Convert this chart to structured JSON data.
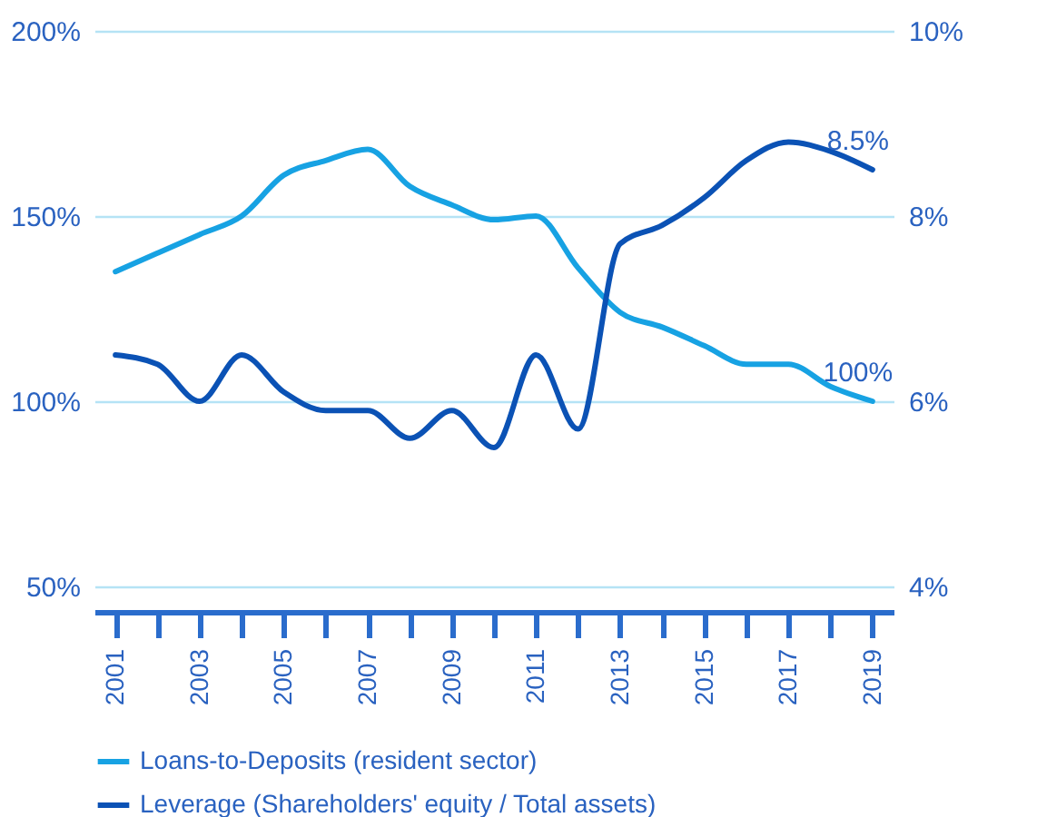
{
  "chart_data": {
    "type": "line",
    "categories": [
      "2001",
      null,
      "2003",
      null,
      "2005",
      null,
      "2007",
      null,
      "2009",
      null,
      "2011",
      null,
      "2013",
      null,
      "2015",
      null,
      "2017",
      null,
      "2019"
    ],
    "series": [
      {
        "name": "Loans-to-Deposits (resident sector)",
        "color": "#17a2e3",
        "values": [
          135,
          140,
          145,
          150,
          161,
          165,
          168,
          158,
          153,
          149,
          150,
          136,
          124,
          120,
          115,
          110,
          110,
          104,
          100
        ],
        "value_labels": [
          null,
          null,
          null,
          null,
          null,
          null,
          null,
          null,
          null,
          null,
          null,
          null,
          null,
          null,
          null,
          null,
          null,
          null,
          "100%"
        ]
      },
      {
        "name": "Leverage (Shareholders' equity / Total assets)",
        "color": "#0b52b5",
        "axis": "y2",
        "values": [
          6.5,
          6.4,
          6.0,
          6.5,
          6.1,
          5.9,
          5.9,
          5.6,
          5.9,
          5.5,
          6.5,
          5.7,
          7.7,
          7.9,
          8.2,
          8.6,
          8.8,
          8.7,
          8.5
        ],
        "value_labels": [
          null,
          null,
          null,
          null,
          null,
          null,
          null,
          null,
          null,
          null,
          null,
          null,
          null,
          null,
          null,
          null,
          null,
          null,
          "8.5%"
        ]
      }
    ],
    "ylim": [
      50,
      200
    ],
    "yticks": [
      {
        "value": 50,
        "label": "50%"
      },
      {
        "value": 100,
        "label": "100%"
      },
      {
        "value": 150,
        "label": "150%"
      },
      {
        "value": 200,
        "label": "200%"
      }
    ],
    "y2lim": [
      4,
      10
    ],
    "y2ticks": [
      {
        "value": 4,
        "label": "4%"
      },
      {
        "value": 6,
        "label": "6%"
      },
      {
        "value": 8,
        "label": "8%"
      },
      {
        "value": 10,
        "label": "10%"
      }
    ],
    "grid": "y",
    "legend": "bottom",
    "marker": "none",
    "line_style": "solid"
  }
}
